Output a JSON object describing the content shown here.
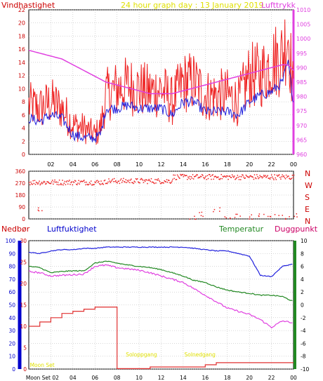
{
  "colors": {
    "wind_label": "#cc0000",
    "title": "#e0e000",
    "pressure": "#e040e0",
    "wind_speed": "#ee2222",
    "gust_blue": "#2222dd",
    "axis": "#000000",
    "grid": "#b0b0b0",
    "humidity_label": "#0000cc",
    "temperature": "#228822",
    "dewpoint": "#cc0066",
    "dir_letters": "#cc0000",
    "rain_bar": "#0000cc",
    "rain_line": "#e03030",
    "sun_label": "#e0e000"
  },
  "chart_data": [
    {
      "type": "line",
      "title": "24 hour graph day : 13 January 2019",
      "ylabel": "Vindhastighet",
      "y2label": "Lufttrykk",
      "x_ticks": [
        "02",
        "04",
        "06",
        "08",
        "10",
        "12",
        "14",
        "16",
        "18",
        "20",
        "22",
        "00"
      ],
      "ylim": [
        0,
        22
      ],
      "y_ticks": [
        0,
        2,
        4,
        6,
        8,
        10,
        12,
        14,
        16,
        18,
        20,
        22
      ],
      "y2lim": [
        960,
        1010
      ],
      "y2_ticks": [
        960,
        965,
        970,
        975,
        980,
        985,
        990,
        995,
        1000,
        1005,
        1010
      ],
      "grid": true,
      "x_hours": [
        0,
        1,
        2,
        3,
        4,
        5,
        6,
        6.5,
        7,
        8,
        9,
        10,
        11,
        12,
        13,
        14,
        15,
        16,
        17,
        18,
        19,
        20,
        21,
        22,
        23,
        23.5,
        24
      ],
      "series": [
        {
          "name": "Vindhastighet",
          "role": "wind",
          "values": [
            7.5,
            7,
            8,
            7,
            4.5,
            4,
            3,
            4,
            9,
            10,
            10.5,
            10,
            9.5,
            10,
            8,
            11,
            11,
            9,
            9,
            9,
            8,
            12,
            12,
            14,
            15,
            19,
            9
          ]
        },
        {
          "name": "Lufttrykk",
          "role": "pressure",
          "values": [
            996,
            995,
            994,
            993,
            991,
            989,
            987,
            986,
            985,
            984,
            983,
            982,
            981,
            981,
            981,
            982,
            983,
            984,
            985,
            986,
            987,
            988,
            989,
            990,
            991,
            991,
            989
          ]
        },
        {
          "name": "",
          "role": "gust",
          "values": [
            5.5,
            5,
            6,
            5.5,
            3,
            2.5,
            2.5,
            3,
            7,
            7,
            7.5,
            7,
            7,
            7,
            6,
            8,
            8,
            6.5,
            6.5,
            6.5,
            6,
            8,
            9,
            9.5,
            11,
            14,
            8
          ]
        }
      ]
    },
    {
      "type": "scatter",
      "title": "",
      "y_ticks": [
        0,
        90,
        180,
        270,
        360
      ],
      "ylim": [
        0,
        360
      ],
      "dir_letters": [
        "N",
        "W",
        "S",
        "E",
        "N"
      ],
      "clusters": [
        {
          "x": [
            0,
            7
          ],
          "y": [
            260,
            300
          ]
        },
        {
          "x": [
            7,
            13
          ],
          "y": [
            270,
            310
          ]
        },
        {
          "x": [
            13,
            24
          ],
          "y": [
            300,
            340
          ]
        }
      ],
      "scattered_low": [
        {
          "x": 0.8,
          "y": 70
        },
        {
          "x": 14.5,
          "y": 5
        },
        {
          "x": 15.2,
          "y": 40
        },
        {
          "x": 16.5,
          "y": 70
        },
        {
          "x": 17.5,
          "y": 10
        },
        {
          "x": 18.5,
          "y": 30
        },
        {
          "x": 19.5,
          "y": 20
        },
        {
          "x": 20.5,
          "y": 35
        },
        {
          "x": 21.5,
          "y": 25
        },
        {
          "x": 22.5,
          "y": 15
        },
        {
          "x": 23.5,
          "y": 30
        }
      ]
    },
    {
      "type": "line",
      "title": "",
      "labels": {
        "left1": "Nedbør",
        "left2": "Luftfuktighet",
        "right1": "Temperatur",
        "right2": "Duggpunkt"
      },
      "y_left_outer_ticks": [
        0,
        10,
        20,
        30,
        40,
        50,
        60,
        70,
        80,
        90,
        100
      ],
      "y_left_inner_ticks": [
        0,
        5,
        10,
        15,
        20,
        25,
        30
      ],
      "y_right_ticks": [
        -10,
        -8,
        -6,
        -4,
        -2,
        0,
        2,
        4,
        6,
        8,
        10
      ],
      "x_ticks": [
        "Moon Set 02",
        "04",
        "06",
        "08",
        "10",
        "12",
        "14",
        "16",
        "18",
        "20",
        "22",
        "00"
      ],
      "annotations": [
        {
          "text": "Moon Set",
          "x": 1.5
        },
        {
          "text": "Soloppgang",
          "x": 10.2
        },
        {
          "text": "Solnedgang",
          "x": 15.5
        }
      ],
      "x_hours": [
        0,
        1,
        2,
        3,
        4,
        5,
        6,
        7,
        8,
        9,
        10,
        11,
        12,
        13,
        14,
        15,
        16,
        17,
        18,
        19,
        20,
        21,
        22,
        23,
        24
      ],
      "series": [
        {
          "name": "Luftfuktighet",
          "values": [
            91,
            90,
            92,
            93,
            93,
            94,
            94,
            95,
            95,
            95,
            95,
            95,
            95,
            95,
            95,
            94,
            93,
            92,
            92,
            90,
            88,
            73,
            72,
            80,
            82
          ]
        },
        {
          "name": "Temperatur",
          "values": [
            6,
            5.8,
            5,
            5.2,
            5.3,
            5.3,
            6.5,
            6.8,
            6.5,
            6.2,
            6,
            5.8,
            5.5,
            5,
            4.5,
            3.8,
            3.5,
            2.8,
            2.3,
            2,
            1.8,
            1.5,
            1.5,
            1.3,
            0.5
          ]
        },
        {
          "name": "Duggpunkt",
          "values": [
            5.2,
            5,
            4.5,
            4.6,
            4.7,
            4.8,
            6,
            6.2,
            5.8,
            5.6,
            5.4,
            5,
            4.5,
            4,
            3.5,
            2.5,
            1.5,
            0.5,
            -0.5,
            -1,
            -1.5,
            -2.3,
            -3.5,
            -2.5,
            -2.8
          ]
        },
        {
          "name": "Nedbør",
          "step": true,
          "values": [
            10,
            11,
            12,
            13,
            13.5,
            14,
            14.5,
            14.5,
            0.1,
            0.1,
            0.1,
            0.5,
            0.5,
            0.5,
            0.5,
            0.5,
            1,
            1.5,
            1.5,
            1.5,
            1.5,
            1.5,
            1.5,
            1.5,
            1.5
          ]
        }
      ]
    }
  ]
}
